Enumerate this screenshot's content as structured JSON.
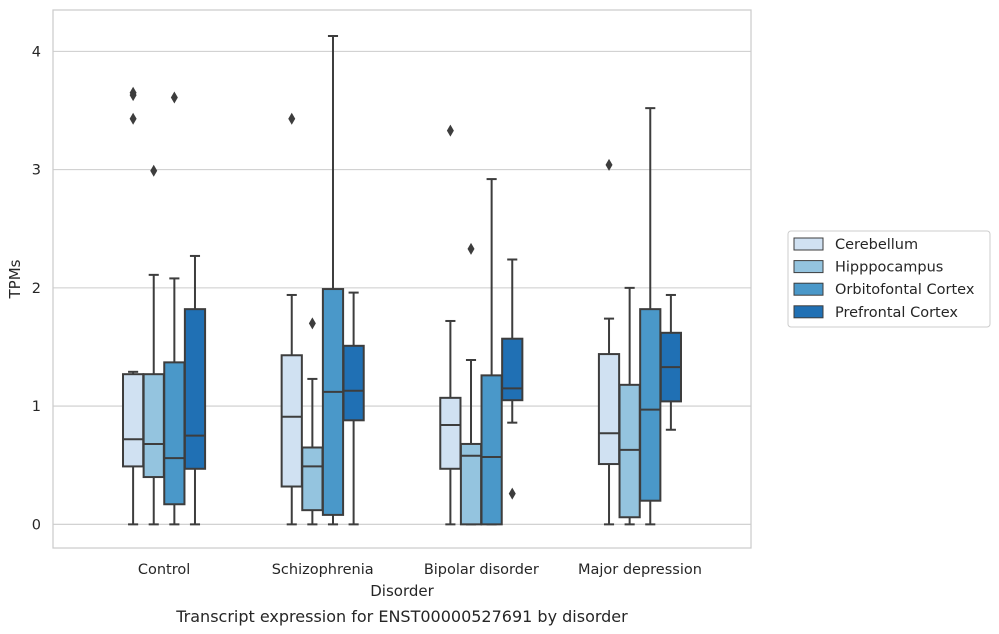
{
  "chart_data": {
    "type": "box",
    "caption": "Transcript expression for ENST00000527691 by disorder",
    "xlabel": "Disorder",
    "ylabel": "TPMs",
    "ylim": [
      -0.2,
      4.35
    ],
    "yticks": [
      0,
      1,
      2,
      3,
      4
    ],
    "grid": "horizontal",
    "legend_position": "right",
    "categories": [
      "Control",
      "Schizophrenia",
      "Bipolar disorder",
      "Major depression"
    ],
    "series": [
      {
        "name": "Cerebellum",
        "color": "#d0e1f2",
        "boxes": [
          {
            "whislo": 0.0,
            "q1": 0.49,
            "med": 0.72,
            "q3": 1.27,
            "whishi": 1.29,
            "fliers": [
              3.43,
              3.63,
              3.65
            ]
          },
          {
            "whislo": 0.0,
            "q1": 0.32,
            "med": 0.91,
            "q3": 1.43,
            "whishi": 1.94,
            "fliers": [
              3.43
            ]
          },
          {
            "whislo": 0.0,
            "q1": 0.47,
            "med": 0.84,
            "q3": 1.07,
            "whishi": 1.72,
            "fliers": [
              3.33
            ]
          },
          {
            "whislo": 0.0,
            "q1": 0.51,
            "med": 0.77,
            "q3": 1.44,
            "whishi": 1.74,
            "fliers": [
              3.04
            ]
          }
        ]
      },
      {
        "name": "Hipppocampus",
        "color": "#94c4df",
        "boxes": [
          {
            "whislo": 0.0,
            "q1": 0.4,
            "med": 0.68,
            "q3": 1.27,
            "whishi": 2.11,
            "fliers": [
              2.99
            ]
          },
          {
            "whislo": 0.0,
            "q1": 0.12,
            "med": 0.49,
            "q3": 0.65,
            "whishi": 1.23,
            "fliers": [
              1.7
            ]
          },
          {
            "whislo": 0.0,
            "q1": 0.0,
            "med": 0.58,
            "q3": 0.68,
            "whishi": 1.39,
            "fliers": [
              2.33
            ]
          },
          {
            "whislo": 0.0,
            "q1": 0.06,
            "med": 0.63,
            "q3": 1.18,
            "whishi": 2.0,
            "fliers": []
          }
        ]
      },
      {
        "name": "Orbitofontal Cortex",
        "color": "#4a98c9",
        "boxes": [
          {
            "whislo": 0.0,
            "q1": 0.17,
            "med": 0.56,
            "q3": 1.37,
            "whishi": 2.08,
            "fliers": [
              3.61
            ]
          },
          {
            "whislo": 0.0,
            "q1": 0.08,
            "med": 1.12,
            "q3": 1.99,
            "whishi": 4.13,
            "fliers": []
          },
          {
            "whislo": 0.0,
            "q1": 0.0,
            "med": 0.57,
            "q3": 1.26,
            "whishi": 2.92,
            "fliers": []
          },
          {
            "whislo": 0.0,
            "q1": 0.2,
            "med": 0.97,
            "q3": 1.82,
            "whishi": 3.52,
            "fliers": []
          }
        ]
      },
      {
        "name": "Prefrontal Cortex",
        "color": "#2070b4",
        "boxes": [
          {
            "whislo": 0.0,
            "q1": 0.47,
            "med": 0.75,
            "q3": 1.82,
            "whishi": 2.27,
            "fliers": []
          },
          {
            "whislo": 0.0,
            "q1": 0.88,
            "med": 1.13,
            "q3": 1.51,
            "whishi": 1.96,
            "fliers": []
          },
          {
            "whislo": 0.86,
            "q1": 1.05,
            "med": 1.15,
            "q3": 1.57,
            "whishi": 2.24,
            "fliers": [
              0.26
            ]
          },
          {
            "whislo": 0.8,
            "q1": 1.04,
            "med": 1.33,
            "q3": 1.62,
            "whishi": 1.94,
            "fliers": []
          }
        ]
      }
    ]
  }
}
